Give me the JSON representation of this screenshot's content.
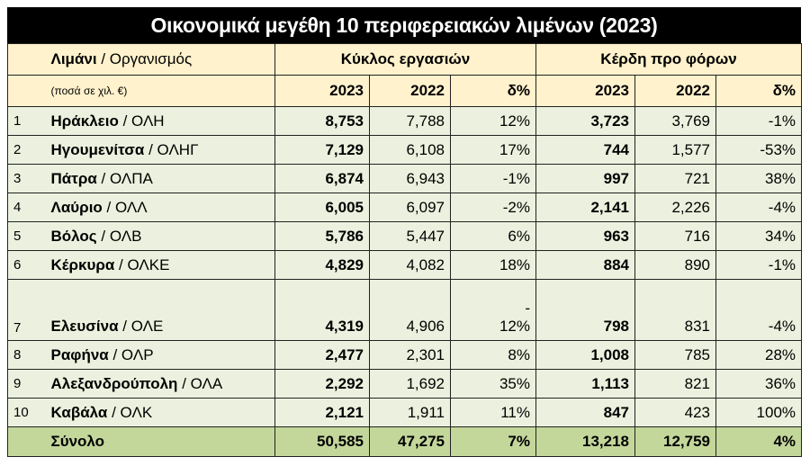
{
  "title": "Οικονομικά μεγέθη 10 περιφερειακών λιμένων (2023)",
  "header": {
    "port": "Λιμάνι",
    "org": "/ Οργανισμός",
    "note": "(ποσά σε χιλ. €)",
    "groups": [
      "Κύκλος εργασιών",
      "Κέρδη προ φόρων"
    ],
    "columns": [
      "2023",
      "2022",
      "δ%",
      "2023",
      "2022",
      "δ%"
    ]
  },
  "rows": [
    {
      "rank": "1",
      "port": "Ηράκλειο",
      "org": "/ ΟΛΗ",
      "values": [
        "8,753",
        "7,788",
        "12%",
        "3,723",
        "3,769",
        "-1%"
      ]
    },
    {
      "rank": "2",
      "port": "Ηγουμενίτσα",
      "org": "/ ΟΛΗΓ",
      "values": [
        "7,129",
        "6,108",
        "17%",
        "744",
        "1,577",
        "-53%"
      ]
    },
    {
      "rank": "3",
      "port": "Πάτρα",
      "org": "/ ΟΛΠΑ",
      "values": [
        "6,874",
        "6,943",
        "-1%",
        "997",
        "721",
        "38%"
      ]
    },
    {
      "rank": "4",
      "port": "Λαύριο",
      "org": "/ ΟΛΛ",
      "values": [
        "6,005",
        "6,097",
        "-2%",
        "2,141",
        "2,226",
        "-4%"
      ]
    },
    {
      "rank": "5",
      "port": "Βόλος",
      "org": "/ ΟΛΒ",
      "values": [
        "5,786",
        "5,447",
        "6%",
        "963",
        "716",
        "34%"
      ]
    },
    {
      "rank": "6",
      "port": "Κέρκυρα",
      "org": "/ ΟΛΚΕ",
      "values": [
        "4,829",
        "4,082",
        "18%",
        "884",
        "890",
        "-1%"
      ]
    },
    {
      "rank": "7",
      "port": "Ελευσίνα",
      "org": "/ ΟΛΕ",
      "values": [
        "4,319",
        "4,906",
        "-\n12%",
        "798",
        "831",
        "-4%"
      ]
    },
    {
      "rank": "8",
      "port": "Ραφήνα",
      "org": "/ ΟΛΡ",
      "values": [
        "2,477",
        "2,301",
        "8%",
        "1,008",
        "785",
        "28%"
      ]
    },
    {
      "rank": "9",
      "port": "Αλεξανδρούπολη",
      "org": "/ ΟΛΑ",
      "values": [
        "2,292",
        "1,692",
        "35%",
        "1,113",
        "821",
        "36%"
      ]
    },
    {
      "rank": "10",
      "port": "Καβάλα",
      "org": "/ ΟΛΚ",
      "values": [
        "2,121",
        "1,911",
        "11%",
        "847",
        "423",
        "100%"
      ]
    }
  ],
  "total": {
    "label": "Σύνολο",
    "values": [
      "50,585",
      "47,275",
      "7%",
      "13,218",
      "12,759",
      "4%"
    ]
  }
}
